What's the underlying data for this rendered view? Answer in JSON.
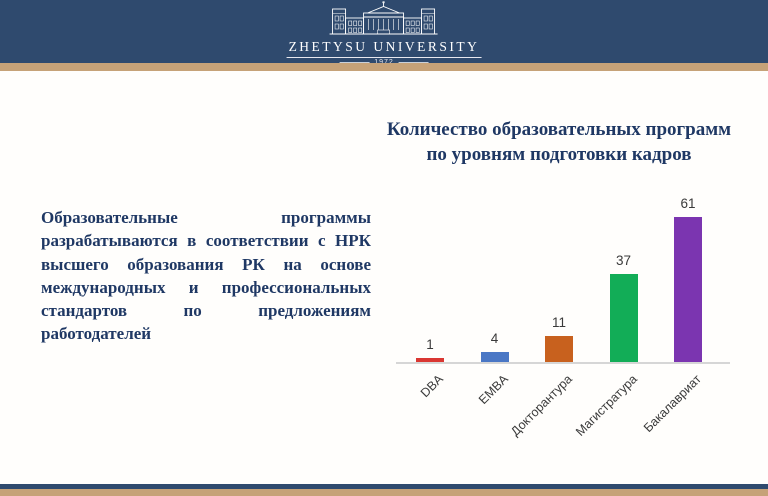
{
  "slide": {
    "header": {
      "university_name": "ZHETYSU UNIVERSITY",
      "established_year": "1972"
    },
    "body_text": "Образовательные программы разрабатываются в соответствии с НРК высшего образования РК на основе международных и профессиональных стандартов по предложениям работодателей"
  },
  "chart_data": {
    "type": "bar",
    "title": "Количество образовательных программ\nпо уровням подготовки кадров",
    "categories": [
      "DBA",
      "EMBA",
      "Докторантура",
      "Магистратура",
      "Бакалавриат"
    ],
    "values": [
      1,
      4,
      11,
      37,
      61
    ],
    "bar_colors": [
      "#da3732",
      "#4a77c5",
      "#c8611e",
      "#12ad57",
      "#7b35b0"
    ],
    "xlabel": "",
    "ylabel": "",
    "ylim": [
      0,
      65
    ],
    "legend": "none",
    "gridlines": false,
    "data_labels_shown": true,
    "category_label_rotation_deg": 45,
    "value_label_color": "#3a3a3a",
    "axis_line_color": "#d6d6d6"
  },
  "theme": {
    "header_navy": "#2f4a6e",
    "accent_tan": "#c6a278",
    "text_blue": "#1f3864"
  }
}
